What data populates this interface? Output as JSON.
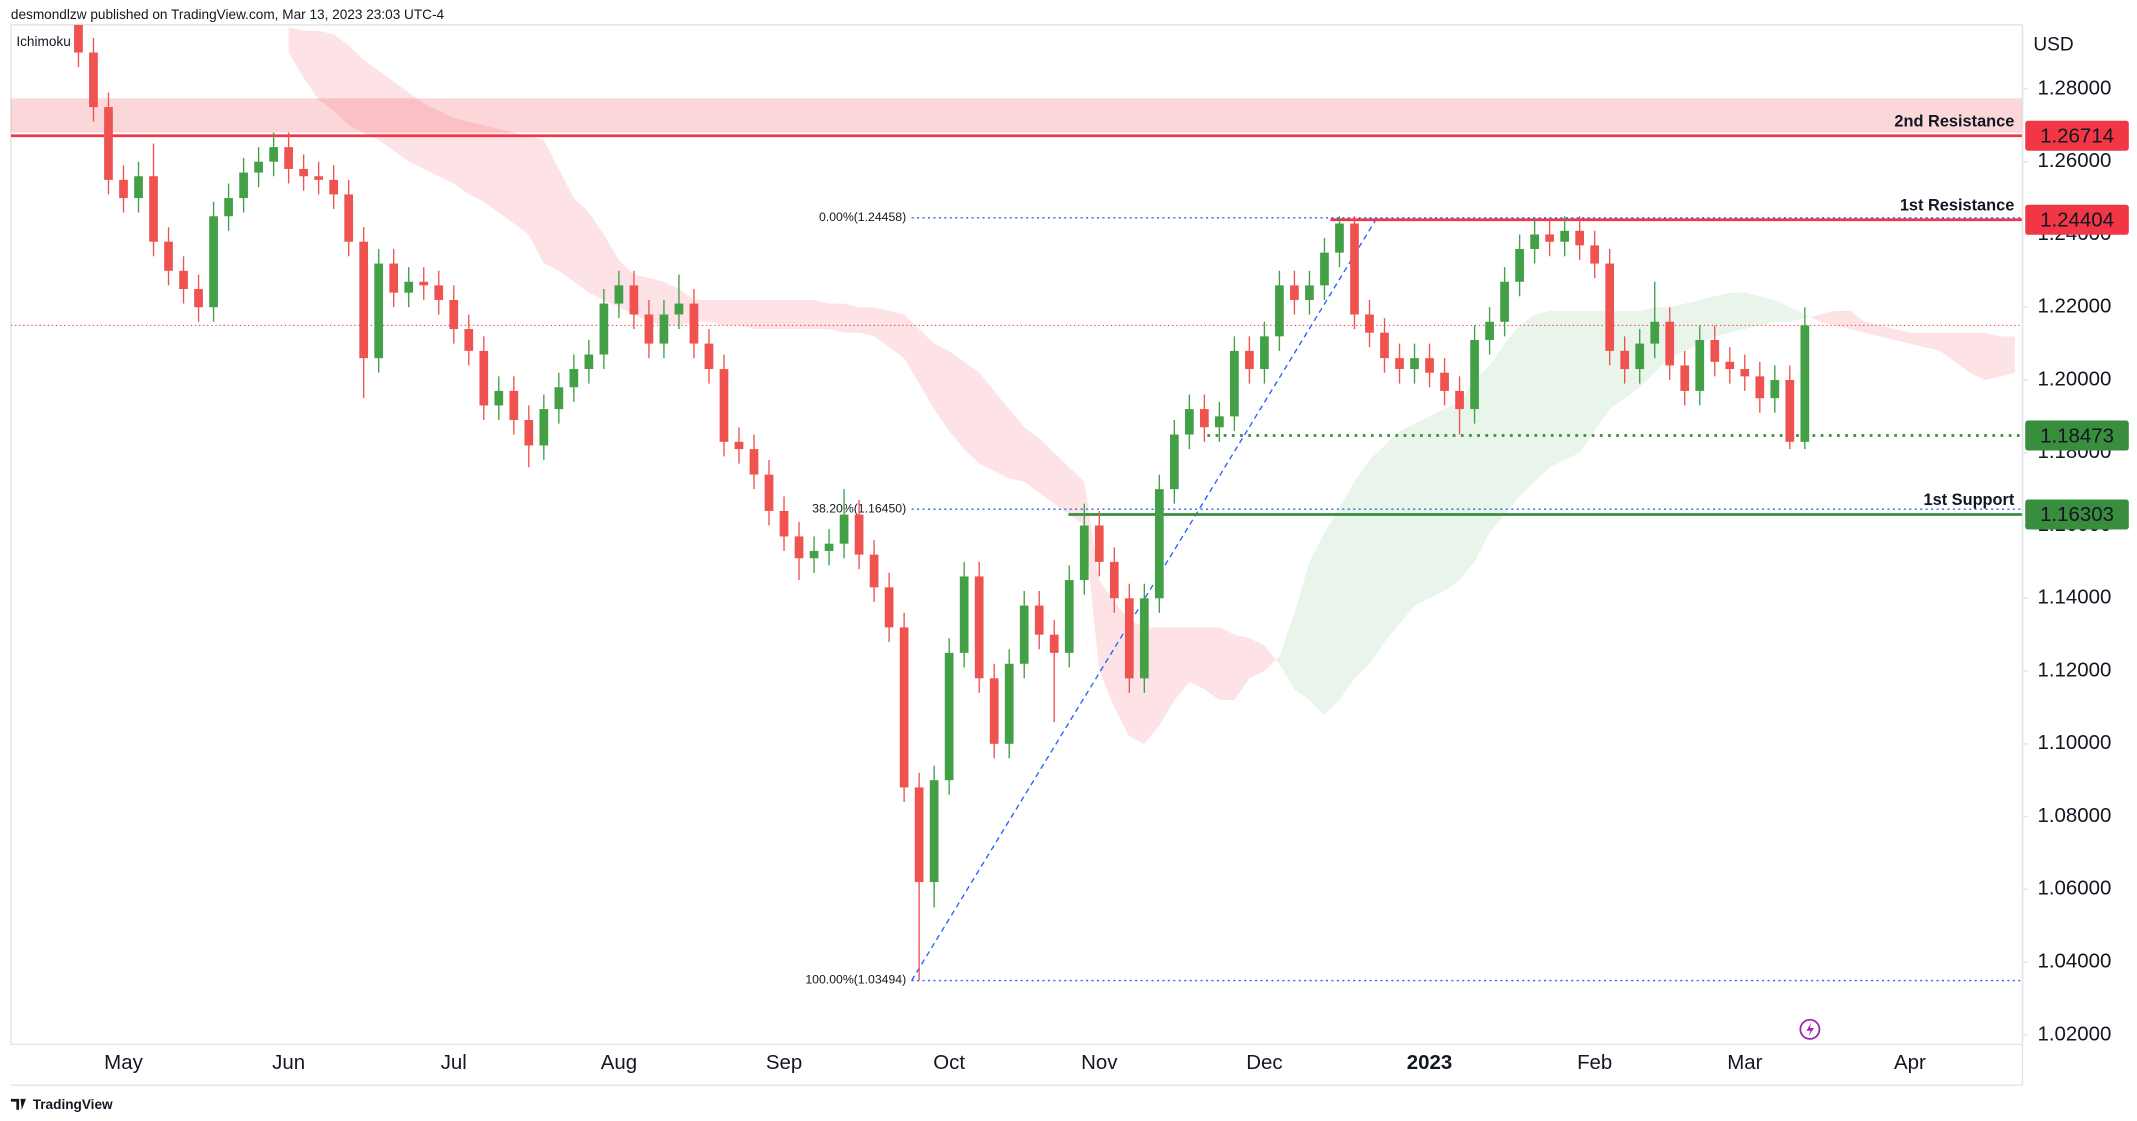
{
  "header": {
    "author_line": "desmondlzw published on TradingView.com, Mar 13, 2023 23:03 UTC-4",
    "indicator": "Ichimoku"
  },
  "footer": {
    "brand": "TradingView"
  },
  "chart_data": {
    "type": "candlestick",
    "currency": "USD",
    "up_color": "#43a047",
    "down_color": "#ef5350",
    "categories": [
      null,
      null,
      null,
      null,
      null,
      null,
      null,
      "May",
      null,
      null,
      null,
      null,
      null,
      null,
      null,
      null,
      null,
      null,
      "Jun",
      null,
      null,
      null,
      null,
      null,
      null,
      null,
      null,
      null,
      null,
      "Jul",
      null,
      null,
      null,
      null,
      null,
      null,
      null,
      null,
      null,
      null,
      "Aug",
      null,
      null,
      null,
      null,
      null,
      null,
      null,
      null,
      null,
      null,
      "Sep",
      null,
      null,
      null,
      null,
      null,
      null,
      null,
      null,
      null,
      null,
      "Oct",
      null,
      null,
      null,
      null,
      null,
      null,
      null,
      null,
      null,
      "Nov",
      null,
      null,
      null,
      null,
      null,
      null,
      null,
      null,
      null,
      null,
      "Dec",
      null,
      null,
      null,
      null,
      null,
      null,
      null,
      null,
      null,
      null,
      "2023",
      null,
      null,
      null,
      null,
      null,
      null,
      null,
      null,
      null,
      null,
      "Feb",
      null,
      null,
      null,
      null,
      null,
      null,
      null,
      null,
      null,
      "Mar",
      null,
      null,
      null,
      null,
      null,
      null,
      null,
      null,
      null,
      null,
      "Apr",
      null,
      null,
      null,
      null,
      null,
      null,
      null
    ],
    "open": [
      null,
      null,
      null,
      null,
      1.3,
      1.29,
      1.275,
      1.255,
      1.25,
      1.256,
      1.238,
      1.23,
      1.225,
      1.22,
      1.245,
      1.25,
      1.257,
      1.26,
      1.264,
      1.258,
      1.256,
      1.255,
      1.251,
      1.238,
      1.206,
      1.232,
      1.224,
      1.227,
      1.226,
      1.222,
      1.214,
      1.208,
      1.193,
      1.197,
      1.189,
      1.182,
      1.192,
      1.198,
      1.203,
      1.207,
      1.221,
      1.226,
      1.218,
      1.21,
      1.218,
      1.221,
      1.21,
      1.203,
      1.183,
      1.181,
      1.174,
      1.164,
      1.157,
      1.151,
      1.153,
      1.155,
      1.163,
      1.152,
      1.143,
      1.132,
      1.088,
      1.062,
      1.09,
      1.125,
      1.146,
      1.118,
      1.1,
      1.122,
      1.138,
      1.13,
      1.125,
      1.145,
      1.16,
      1.15,
      1.14,
      1.118,
      1.14,
      1.17,
      1.185,
      1.192,
      1.187,
      1.19,
      1.208,
      1.203,
      1.212,
      1.226,
      1.222,
      1.226,
      1.235,
      1.243,
      1.218,
      1.213,
      1.206,
      1.203,
      1.206,
      1.202,
      1.197,
      1.192,
      1.211,
      1.216,
      1.227,
      1.236,
      1.24,
      1.238,
      1.241,
      1.237,
      1.232,
      1.208,
      1.203,
      1.21,
      1.216,
      1.204,
      1.197,
      1.211,
      1.205,
      1.203,
      1.201,
      1.195,
      1.2,
      1.183,
      null,
      null,
      null,
      null,
      null,
      null,
      null,
      null,
      null,
      null,
      null,
      null,
      null,
      null
    ],
    "high": [
      null,
      null,
      null,
      null,
      1.304,
      1.294,
      1.279,
      1.259,
      1.26,
      1.265,
      1.242,
      1.234,
      1.229,
      1.249,
      1.254,
      1.261,
      1.264,
      1.268,
      1.268,
      1.262,
      1.26,
      1.259,
      1.255,
      1.242,
      1.236,
      1.236,
      1.231,
      1.231,
      1.23,
      1.226,
      1.218,
      1.212,
      1.201,
      1.201,
      1.193,
      1.196,
      1.202,
      1.207,
      1.211,
      1.225,
      1.23,
      1.23,
      1.222,
      1.222,
      1.229,
      1.225,
      1.214,
      1.207,
      1.187,
      1.185,
      1.178,
      1.168,
      1.161,
      1.157,
      1.159,
      1.17,
      1.167,
      1.156,
      1.147,
      1.136,
      1.092,
      1.094,
      1.129,
      1.15,
      1.15,
      1.122,
      1.126,
      1.142,
      1.142,
      1.134,
      1.149,
      1.166,
      1.164,
      1.154,
      1.144,
      1.144,
      1.174,
      1.189,
      1.196,
      1.196,
      1.194,
      1.212,
      1.212,
      1.216,
      1.23,
      1.23,
      1.23,
      1.239,
      1.245,
      1.245,
      1.222,
      1.217,
      1.21,
      1.21,
      1.21,
      1.206,
      1.201,
      1.215,
      1.22,
      1.231,
      1.24,
      1.244,
      1.244,
      1.245,
      1.245,
      1.241,
      1.236,
      1.212,
      1.214,
      1.227,
      1.22,
      1.208,
      1.215,
      1.215,
      1.209,
      1.207,
      1.205,
      1.204,
      1.204,
      1.22,
      null,
      null,
      null,
      null,
      null,
      null,
      null,
      null,
      null,
      null,
      null,
      null,
      null,
      null
    ],
    "low": [
      null,
      null,
      null,
      null,
      1.286,
      1.271,
      1.251,
      1.246,
      1.246,
      1.234,
      1.226,
      1.221,
      1.216,
      1.216,
      1.241,
      1.246,
      1.253,
      1.256,
      1.254,
      1.252,
      1.251,
      1.247,
      1.234,
      1.195,
      1.202,
      1.22,
      1.22,
      1.222,
      1.218,
      1.21,
      1.204,
      1.189,
      1.189,
      1.185,
      1.176,
      1.178,
      1.188,
      1.194,
      1.199,
      1.203,
      1.217,
      1.214,
      1.206,
      1.206,
      1.214,
      1.206,
      1.199,
      1.179,
      1.177,
      1.17,
      1.16,
      1.153,
      1.145,
      1.147,
      1.149,
      1.151,
      1.148,
      1.139,
      1.128,
      1.084,
      1.035,
      1.055,
      1.086,
      1.121,
      1.114,
      1.096,
      1.096,
      1.118,
      1.126,
      1.106,
      1.121,
      1.141,
      1.146,
      1.136,
      1.114,
      1.114,
      1.136,
      1.166,
      1.181,
      1.183,
      1.183,
      1.186,
      1.199,
      1.199,
      1.208,
      1.218,
      1.218,
      1.222,
      1.231,
      1.214,
      1.209,
      1.202,
      1.199,
      1.199,
      1.198,
      1.193,
      1.185,
      1.188,
      1.207,
      1.212,
      1.223,
      1.232,
      1.234,
      1.234,
      1.233,
      1.228,
      1.204,
      1.199,
      1.199,
      1.206,
      1.2,
      1.193,
      1.193,
      1.201,
      1.199,
      1.197,
      1.191,
      1.191,
      1.181,
      1.181,
      null,
      null,
      null,
      null,
      null,
      null,
      null,
      null,
      null,
      null,
      null,
      null,
      null,
      null
    ],
    "close": [
      null,
      null,
      null,
      null,
      1.29,
      1.275,
      1.255,
      1.25,
      1.256,
      1.238,
      1.23,
      1.225,
      1.22,
      1.245,
      1.25,
      1.257,
      1.26,
      1.264,
      1.258,
      1.256,
      1.255,
      1.251,
      1.238,
      1.206,
      1.232,
      1.224,
      1.227,
      1.226,
      1.222,
      1.214,
      1.208,
      1.193,
      1.197,
      1.189,
      1.182,
      1.192,
      1.198,
      1.203,
      1.207,
      1.221,
      1.226,
      1.218,
      1.21,
      1.218,
      1.221,
      1.21,
      1.203,
      1.183,
      1.181,
      1.174,
      1.164,
      1.157,
      1.151,
      1.153,
      1.155,
      1.163,
      1.152,
      1.143,
      1.132,
      1.088,
      1.062,
      1.09,
      1.125,
      1.146,
      1.118,
      1.1,
      1.122,
      1.138,
      1.13,
      1.125,
      1.145,
      1.16,
      1.15,
      1.14,
      1.118,
      1.14,
      1.17,
      1.185,
      1.192,
      1.187,
      1.19,
      1.208,
      1.203,
      1.212,
      1.226,
      1.222,
      1.226,
      1.235,
      1.243,
      1.218,
      1.213,
      1.206,
      1.203,
      1.206,
      1.202,
      1.197,
      1.192,
      1.211,
      1.216,
      1.227,
      1.236,
      1.24,
      1.238,
      1.241,
      1.237,
      1.232,
      1.208,
      1.203,
      1.21,
      1.216,
      1.204,
      1.197,
      1.211,
      1.205,
      1.203,
      1.201,
      1.195,
      1.2,
      1.183,
      1.215,
      null,
      null,
      null,
      null,
      null,
      null,
      null,
      null,
      null,
      null,
      null,
      null,
      null,
      null
    ],
    "ichimoku": {
      "bull_color": "rgba(76,175,80,0.12)",
      "bear_color": "rgba(242,54,69,0.14)",
      "span_a": [
        null,
        null,
        null,
        null,
        null,
        null,
        null,
        null,
        null,
        null,
        null,
        null,
        null,
        null,
        null,
        null,
        null,
        null,
        1.29,
        1.283,
        1.277,
        1.274,
        1.27,
        1.268,
        1.266,
        1.263,
        1.26,
        1.258,
        1.256,
        1.254,
        1.251,
        1.249,
        1.246,
        1.243,
        1.24,
        1.232,
        1.23,
        1.227,
        1.224,
        1.222,
        1.22,
        1.218,
        1.216,
        1.215,
        1.215,
        1.216,
        1.216,
        1.215,
        1.215,
        1.214,
        1.214,
        1.214,
        1.214,
        1.214,
        1.214,
        1.213,
        1.213,
        1.212,
        1.209,
        1.206,
        1.199,
        1.192,
        1.186,
        1.181,
        1.177,
        1.175,
        1.173,
        1.172,
        1.169,
        1.166,
        1.163,
        1.16,
        1.12,
        1.11,
        1.102,
        1.1,
        1.105,
        1.112,
        1.117,
        1.115,
        1.112,
        1.112,
        1.118,
        1.12,
        1.124,
        1.136,
        1.15,
        1.158,
        1.165,
        1.172,
        1.178,
        1.182,
        1.186,
        1.188,
        1.19,
        1.192,
        1.194,
        1.2,
        1.204,
        1.21,
        1.215,
        1.218,
        1.219,
        1.219,
        1.219,
        1.219,
        1.219,
        1.219,
        1.219,
        1.22,
        1.22,
        1.221,
        1.222,
        1.223,
        1.224,
        1.224,
        1.223,
        1.222,
        1.22,
        1.218,
        1.216,
        1.215,
        1.214,
        1.213,
        1.212,
        1.211,
        1.21,
        1.209,
        1.208,
        1.205,
        1.202,
        1.2,
        1.201,
        1.202
      ],
      "span_b": [
        null,
        null,
        null,
        null,
        null,
        null,
        null,
        null,
        null,
        null,
        null,
        null,
        null,
        null,
        null,
        null,
        null,
        null,
        1.297,
        1.296,
        1.296,
        1.295,
        1.292,
        1.288,
        1.285,
        1.282,
        1.279,
        1.276,
        1.274,
        1.272,
        1.271,
        1.27,
        1.269,
        1.268,
        1.267,
        1.266,
        1.258,
        1.25,
        1.246,
        1.24,
        1.233,
        1.229,
        1.228,
        1.227,
        1.225,
        1.222,
        1.222,
        1.222,
        1.222,
        1.222,
        1.222,
        1.222,
        1.222,
        1.222,
        1.221,
        1.221,
        1.22,
        1.22,
        1.219,
        1.218,
        1.214,
        1.21,
        1.208,
        1.205,
        1.202,
        1.197,
        1.192,
        1.187,
        1.184,
        1.18,
        1.176,
        1.172,
        1.145,
        1.139,
        1.134,
        1.132,
        1.132,
        1.132,
        1.132,
        1.132,
        1.132,
        1.13,
        1.129,
        1.127,
        1.122,
        1.115,
        1.112,
        1.108,
        1.112,
        1.118,
        1.122,
        1.128,
        1.133,
        1.138,
        1.14,
        1.142,
        1.145,
        1.15,
        1.158,
        1.163,
        1.168,
        1.172,
        1.176,
        1.178,
        1.18,
        1.186,
        1.192,
        1.195,
        1.198,
        1.202,
        1.206,
        1.208,
        1.21,
        1.212,
        1.213,
        1.214,
        1.215,
        1.216,
        1.216,
        1.217,
        1.218,
        1.219,
        1.219,
        1.216,
        1.215,
        1.214,
        1.213,
        1.213,
        1.213,
        1.213,
        1.213,
        1.213,
        1.212,
        1.212
      ]
    },
    "zones": [
      {
        "from": 1.268,
        "to": 1.2774,
        "color": "rgba(242,54,69,0.2)"
      }
    ],
    "levels": [
      {
        "name": "2nd Resistance",
        "value": 1.26714,
        "color": "#f23645",
        "style": "solid"
      },
      {
        "name": "1st Resistance",
        "value": 1.24404,
        "color": "#f23645",
        "style": "solid"
      },
      {
        "value": 1.18473,
        "color": "#388e3c",
        "style": "dotted"
      },
      {
        "name": "1st Support",
        "value": 1.16303,
        "color": "#388e3c",
        "style": "solid"
      }
    ],
    "fib": [
      {
        "label": "0.00%(1.24458)",
        "value": 1.24458
      },
      {
        "label": "38.20%(1.16450)",
        "value": 1.1645
      },
      {
        "label": "100.00%(1.03494)",
        "value": 1.03494
      }
    ],
    "fib_color": "#2962ff",
    "ylim": [
      1.0174,
      1.2976
    ],
    "yticks": [
      {
        "value": 1.02,
        "label": "1.02000"
      },
      {
        "value": 1.04,
        "label": "1.04000"
      },
      {
        "value": 1.06,
        "label": "1.06000"
      },
      {
        "value": 1.08,
        "label": "1.08000"
      },
      {
        "value": 1.1,
        "label": "1.10000"
      },
      {
        "value": 1.12,
        "label": "1.12000"
      },
      {
        "value": 1.14,
        "label": "1.14000"
      },
      {
        "value": 1.16,
        "label": "1.16000"
      },
      {
        "value": 1.18,
        "label": "1.18000"
      },
      {
        "value": 1.2,
        "label": "1.20000"
      },
      {
        "value": 1.22,
        "label": "1.22000"
      },
      {
        "value": 1.24,
        "label": "1.24000"
      },
      {
        "value": 1.26,
        "label": "1.26000"
      },
      {
        "value": 1.28,
        "label": "1.28000"
      }
    ],
    "grid": false
  }
}
